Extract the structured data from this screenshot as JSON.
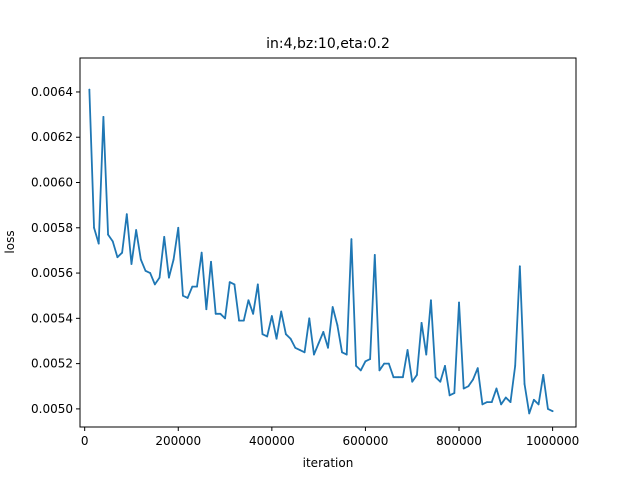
{
  "chart_data": {
    "type": "line",
    "title": "in:4,bz:10,eta:0.2",
    "xlabel": "iteration",
    "ylabel": "loss",
    "xlim": [
      -10000,
      1050000
    ],
    "ylim": [
      0.00492,
      0.00655
    ],
    "grid": false,
    "line_color": "#1f77b4",
    "xticks": [
      {
        "value": 0,
        "label": "0"
      },
      {
        "value": 200000,
        "label": "200000"
      },
      {
        "value": 400000,
        "label": "400000"
      },
      {
        "value": 600000,
        "label": "600000"
      },
      {
        "value": 800000,
        "label": "800000"
      },
      {
        "value": 1000000,
        "label": "1000000"
      }
    ],
    "yticks": [
      {
        "value": 0.005,
        "label": "0.0050"
      },
      {
        "value": 0.0052,
        "label": "0.0052"
      },
      {
        "value": 0.0054,
        "label": "0.0054"
      },
      {
        "value": 0.0056,
        "label": "0.0056"
      },
      {
        "value": 0.0058,
        "label": "0.0058"
      },
      {
        "value": 0.006,
        "label": "0.0060"
      },
      {
        "value": 0.0062,
        "label": "0.0062"
      },
      {
        "value": 0.0064,
        "label": "0.0064"
      }
    ],
    "series": [
      {
        "x": [
          10000,
          20000,
          30000,
          40000,
          50000,
          60000,
          70000,
          80000,
          90000,
          100000,
          110000,
          120000,
          130000,
          140000,
          150000,
          160000,
          170000,
          180000,
          190000,
          200000,
          210000,
          220000,
          230000,
          240000,
          250000,
          260000,
          270000,
          280000,
          290000,
          300000,
          310000,
          320000,
          330000,
          340000,
          350000,
          360000,
          370000,
          380000,
          390000,
          400000,
          410000,
          420000,
          430000,
          440000,
          450000,
          460000,
          470000,
          480000,
          490000,
          500000,
          510000,
          520000,
          530000,
          540000,
          550000,
          560000,
          570000,
          580000,
          590000,
          600000,
          610000,
          620000,
          630000,
          640000,
          650000,
          660000,
          670000,
          680000,
          690000,
          700000,
          710000,
          720000,
          730000,
          740000,
          750000,
          760000,
          770000,
          780000,
          790000,
          800000,
          810000,
          820000,
          830000,
          840000,
          850000,
          860000,
          870000,
          880000,
          890000,
          900000,
          910000,
          920000,
          930000,
          940000,
          950000,
          960000,
          970000,
          980000,
          990000,
          1000000
        ],
        "y": [
          0.00641,
          0.0058,
          0.00573,
          0.00629,
          0.00577,
          0.00574,
          0.00567,
          0.00569,
          0.00586,
          0.00564,
          0.00579,
          0.00566,
          0.00561,
          0.0056,
          0.00555,
          0.00558,
          0.00576,
          0.00558,
          0.00566,
          0.0058,
          0.0055,
          0.00549,
          0.00554,
          0.00554,
          0.00569,
          0.00544,
          0.00565,
          0.00542,
          0.00542,
          0.0054,
          0.00556,
          0.00555,
          0.00539,
          0.00539,
          0.00548,
          0.00542,
          0.00555,
          0.00533,
          0.00532,
          0.00541,
          0.00531,
          0.00543,
          0.00533,
          0.00531,
          0.00527,
          0.00526,
          0.00525,
          0.0054,
          0.00524,
          0.00529,
          0.00534,
          0.00527,
          0.00545,
          0.00537,
          0.00525,
          0.00524,
          0.00575,
          0.00519,
          0.00517,
          0.00521,
          0.00522,
          0.00568,
          0.00517,
          0.0052,
          0.0052,
          0.00514,
          0.00514,
          0.00514,
          0.00526,
          0.00512,
          0.00515,
          0.00538,
          0.00524,
          0.00548,
          0.00514,
          0.00512,
          0.00519,
          0.00506,
          0.00507,
          0.00547,
          0.00509,
          0.0051,
          0.00513,
          0.00518,
          0.00502,
          0.00503,
          0.00503,
          0.00509,
          0.00502,
          0.00505,
          0.00503,
          0.00519,
          0.00563,
          0.00511,
          0.00498,
          0.00504,
          0.00502,
          0.00515,
          0.005,
          0.00499
        ]
      }
    ]
  }
}
